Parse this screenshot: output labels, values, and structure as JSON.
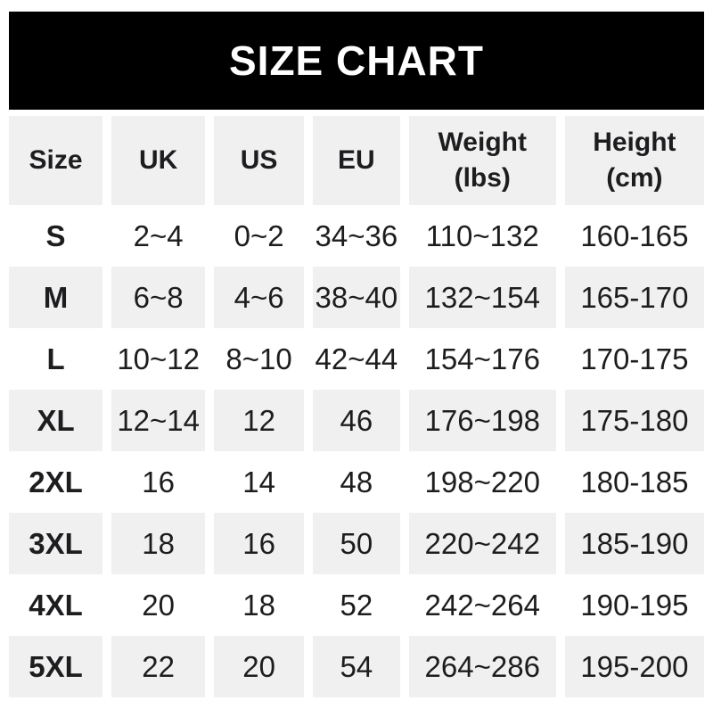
{
  "banner": {
    "title": "SIZE CHART"
  },
  "colors": {
    "banner_bg": "#000000",
    "banner_text": "#ffffff",
    "row_alt_bg": "#f0f0f0",
    "text": "#1d1d1f",
    "page_bg": "#ffffff"
  },
  "table": {
    "headers": [
      {
        "label": "Size",
        "unit": ""
      },
      {
        "label": "UK",
        "unit": ""
      },
      {
        "label": "US",
        "unit": ""
      },
      {
        "label": "EU",
        "unit": ""
      },
      {
        "label": "Weight",
        "unit": "(lbs)"
      },
      {
        "label": "Height",
        "unit": "(cm)"
      }
    ],
    "rows": [
      {
        "size": "S",
        "uk": "2~4",
        "us": "0~2",
        "eu": "34~36",
        "weight": "110~132",
        "height": "160-165"
      },
      {
        "size": "M",
        "uk": "6~8",
        "us": "4~6",
        "eu": "38~40",
        "weight": "132~154",
        "height": "165-170"
      },
      {
        "size": "L",
        "uk": "10~12",
        "us": "8~10",
        "eu": "42~44",
        "weight": "154~176",
        "height": "170-175"
      },
      {
        "size": "XL",
        "uk": "12~14",
        "us": "12",
        "eu": "46",
        "weight": "176~198",
        "height": "175-180"
      },
      {
        "size": "2XL",
        "uk": "16",
        "us": "14",
        "eu": "48",
        "weight": "198~220",
        "height": "180-185"
      },
      {
        "size": "3XL",
        "uk": "18",
        "us": "16",
        "eu": "50",
        "weight": "220~242",
        "height": "185-190"
      },
      {
        "size": "4XL",
        "uk": "20",
        "us": "18",
        "eu": "52",
        "weight": "242~264",
        "height": "190-195"
      },
      {
        "size": "5XL",
        "uk": "22",
        "us": "20",
        "eu": "54",
        "weight": "264~286",
        "height": "195-200"
      }
    ]
  },
  "chart_data": {
    "type": "table",
    "title": "SIZE CHART",
    "columns": [
      "Size",
      "UK",
      "US",
      "EU",
      "Weight (lbs)",
      "Height (cm)"
    ],
    "rows": [
      [
        "S",
        "2~4",
        "0~2",
        "34~36",
        "110~132",
        "160-165"
      ],
      [
        "M",
        "6~8",
        "4~6",
        "38~40",
        "132~154",
        "165-170"
      ],
      [
        "L",
        "10~12",
        "8~10",
        "42~44",
        "154~176",
        "170-175"
      ],
      [
        "XL",
        "12~14",
        "12",
        "46",
        "176~198",
        "175-180"
      ],
      [
        "2XL",
        "16",
        "14",
        "48",
        "198~220",
        "180-185"
      ],
      [
        "3XL",
        "18",
        "16",
        "50",
        "220~242",
        "185-190"
      ],
      [
        "4XL",
        "20",
        "18",
        "52",
        "242~264",
        "190-195"
      ],
      [
        "5XL",
        "22",
        "20",
        "54",
        "264~286",
        "195-200"
      ]
    ]
  }
}
